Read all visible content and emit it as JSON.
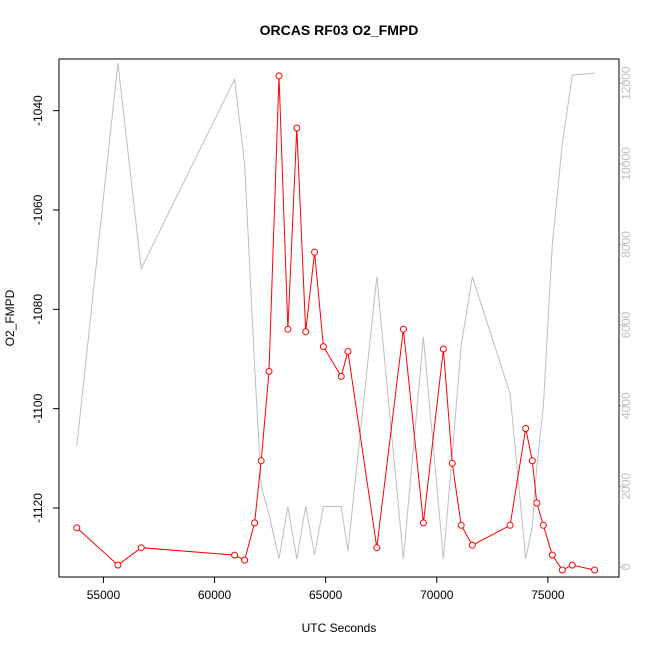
{
  "chart_data": {
    "type": "line",
    "title": "ORCAS RF03 O2_FMPD",
    "xlabel": "UTC Seconds",
    "ylabel": "O2_FMPD",
    "xlim": [
      53000,
      78200
    ],
    "ylim": [
      -1133.9,
      -1029.6
    ],
    "y2lim": [
      -250,
      12600
    ],
    "grid": false,
    "x_ticks": [
      {
        "value": 55000,
        "label": "55000"
      },
      {
        "value": 60000,
        "label": "60000"
      },
      {
        "value": 65000,
        "label": "65000"
      },
      {
        "value": 70000,
        "label": "70000"
      },
      {
        "value": 75000,
        "label": "75000"
      }
    ],
    "y_ticks": [
      {
        "value": -1040,
        "label": "-1040"
      },
      {
        "value": -1060,
        "label": "-1060"
      },
      {
        "value": -1080,
        "label": "-1080"
      },
      {
        "value": -1100,
        "label": "-1100"
      },
      {
        "value": -1120,
        "label": "-1120"
      }
    ],
    "y2_ticks": [
      {
        "value": 0,
        "label": "0"
      },
      {
        "value": 2000,
        "label": "2000"
      },
      {
        "value": 4000,
        "label": "4000"
      },
      {
        "value": 6000,
        "label": "6000"
      },
      {
        "value": 8000,
        "label": "8000"
      },
      {
        "value": 10000,
        "label": "10000"
      },
      {
        "value": 12000,
        "label": "12000"
      }
    ],
    "series": [
      {
        "color": "#ff0000",
        "marker": "open-circle",
        "axis": "left",
        "x": [
          53800,
          55650,
          56700,
          60900,
          61350,
          61800,
          62100,
          62450,
          62900,
          63300,
          63700,
          64100,
          64500,
          64900,
          65700,
          66000,
          67300,
          68500,
          69400,
          70300,
          70700,
          71100,
          71600,
          73300,
          74000,
          74300,
          74500,
          74800,
          75200,
          75650,
          76100,
          77100
        ],
        "y": [
          -1124,
          -1131.5,
          -1128,
          -1129.5,
          -1130.5,
          -1123,
          -1110.5,
          -1092.5,
          -1033,
          -1084,
          -1043.5,
          -1084.5,
          -1068.5,
          -1087.5,
          -1093.5,
          -1088.5,
          -1128,
          -1084,
          -1123,
          -1088,
          -1111,
          -1123.5,
          -1127.5,
          -1123.5,
          -1104,
          -1110.5,
          -1119,
          -1123.5,
          -1129.5,
          -1132.5,
          -1131.5,
          -1132.5
        ]
      },
      {
        "color": "#bebebe",
        "marker": "none",
        "axis": "right",
        "x": [
          53800,
          55650,
          56700,
          60900,
          61350,
          61800,
          62100,
          62450,
          62900,
          63300,
          63700,
          64100,
          64500,
          64900,
          65700,
          66000,
          67300,
          68500,
          69400,
          70300,
          70700,
          71100,
          71600,
          73300,
          74000,
          74300,
          74500,
          74800,
          75200,
          75650,
          76100,
          77100
        ],
        "y": [
          3000,
          12500,
          7400,
          12100,
          10000,
          5000,
          2000,
          1300,
          200,
          1500,
          200,
          1500,
          300,
          1500,
          1500,
          400,
          7200,
          200,
          5700,
          200,
          2800,
          5500,
          7200,
          4300,
          200,
          1000,
          2500,
          4000,
          8000,
          10500,
          12200,
          12250
        ]
      }
    ]
  }
}
